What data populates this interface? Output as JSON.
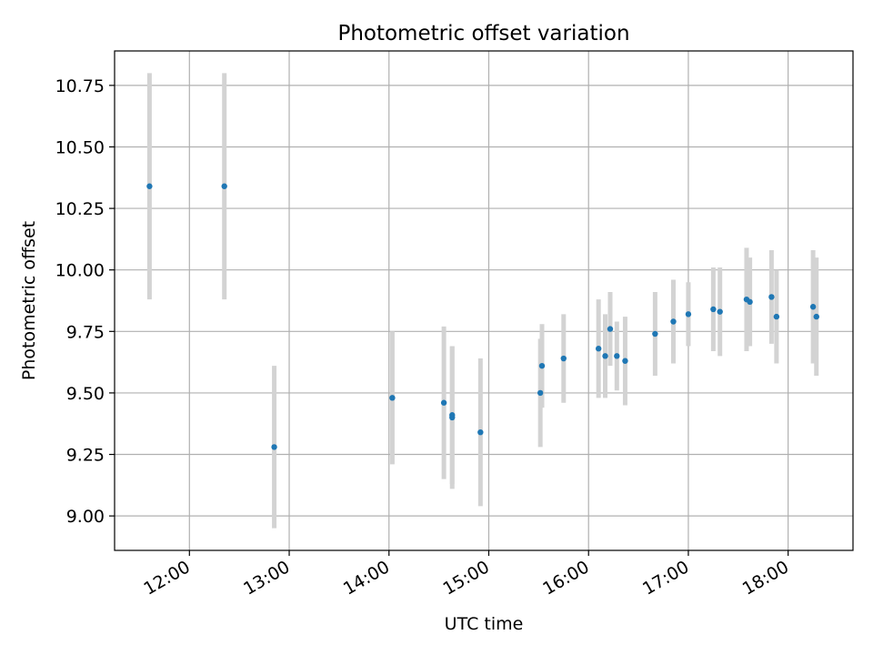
{
  "chart_data": {
    "type": "scatter",
    "title": "Photometric offset variation",
    "xlabel": "UTC time",
    "ylabel": "Photometric offset",
    "x_tick_labels": [
      "12:00",
      "13:00",
      "14:00",
      "15:00",
      "16:00",
      "17:00",
      "18:00"
    ],
    "y_tick_labels": [
      "9.00",
      "9.25",
      "9.50",
      "9.75",
      "10.00",
      "10.25",
      "10.50",
      "10.75"
    ],
    "xlim": [
      "11:15",
      "18:39"
    ],
    "ylim": [
      8.86,
      10.89
    ],
    "grid": true,
    "colors": {
      "points": "#1f77b4",
      "errorbars": "#d3d3d3",
      "grid": "#b0b0b0"
    },
    "series": [
      {
        "points": [
          {
            "x": "11:36",
            "y": 10.34,
            "err": 0.46
          },
          {
            "x": "12:21",
            "y": 10.34,
            "err": 0.46
          },
          {
            "x": "12:51",
            "y": 9.28,
            "err": 0.33
          },
          {
            "x": "14:02",
            "y": 9.48,
            "err": 0.27
          },
          {
            "x": "14:33",
            "y": 9.46,
            "err": 0.31
          },
          {
            "x": "14:38",
            "y": 9.4,
            "err": 0.29
          },
          {
            "x": "14:38",
            "y": 9.41,
            "err": 0.28
          },
          {
            "x": "14:55",
            "y": 9.34,
            "err": 0.3
          },
          {
            "x": "15:31",
            "y": 9.5,
            "err": 0.22
          },
          {
            "x": "15:32",
            "y": 9.61,
            "err": 0.17
          },
          {
            "x": "15:45",
            "y": 9.64,
            "err": 0.18
          },
          {
            "x": "16:06",
            "y": 9.68,
            "err": 0.2
          },
          {
            "x": "16:10",
            "y": 9.65,
            "err": 0.17
          },
          {
            "x": "16:13",
            "y": 9.76,
            "err": 0.15
          },
          {
            "x": "16:17",
            "y": 9.65,
            "err": 0.14
          },
          {
            "x": "16:22",
            "y": 9.63,
            "err": 0.18
          },
          {
            "x": "16:40",
            "y": 9.74,
            "err": 0.17
          },
          {
            "x": "16:51",
            "y": 9.79,
            "err": 0.17
          },
          {
            "x": "17:00",
            "y": 9.82,
            "err": 0.13
          },
          {
            "x": "17:15",
            "y": 9.84,
            "err": 0.17
          },
          {
            "x": "17:19",
            "y": 9.83,
            "err": 0.18
          },
          {
            "x": "17:35",
            "y": 9.88,
            "err": 0.21
          },
          {
            "x": "17:37",
            "y": 9.87,
            "err": 0.18
          },
          {
            "x": "17:50",
            "y": 9.89,
            "err": 0.19
          },
          {
            "x": "17:53",
            "y": 9.81,
            "err": 0.19
          },
          {
            "x": "18:15",
            "y": 9.85,
            "err": 0.23
          },
          {
            "x": "18:17",
            "y": 9.81,
            "err": 0.24
          }
        ]
      }
    ]
  }
}
